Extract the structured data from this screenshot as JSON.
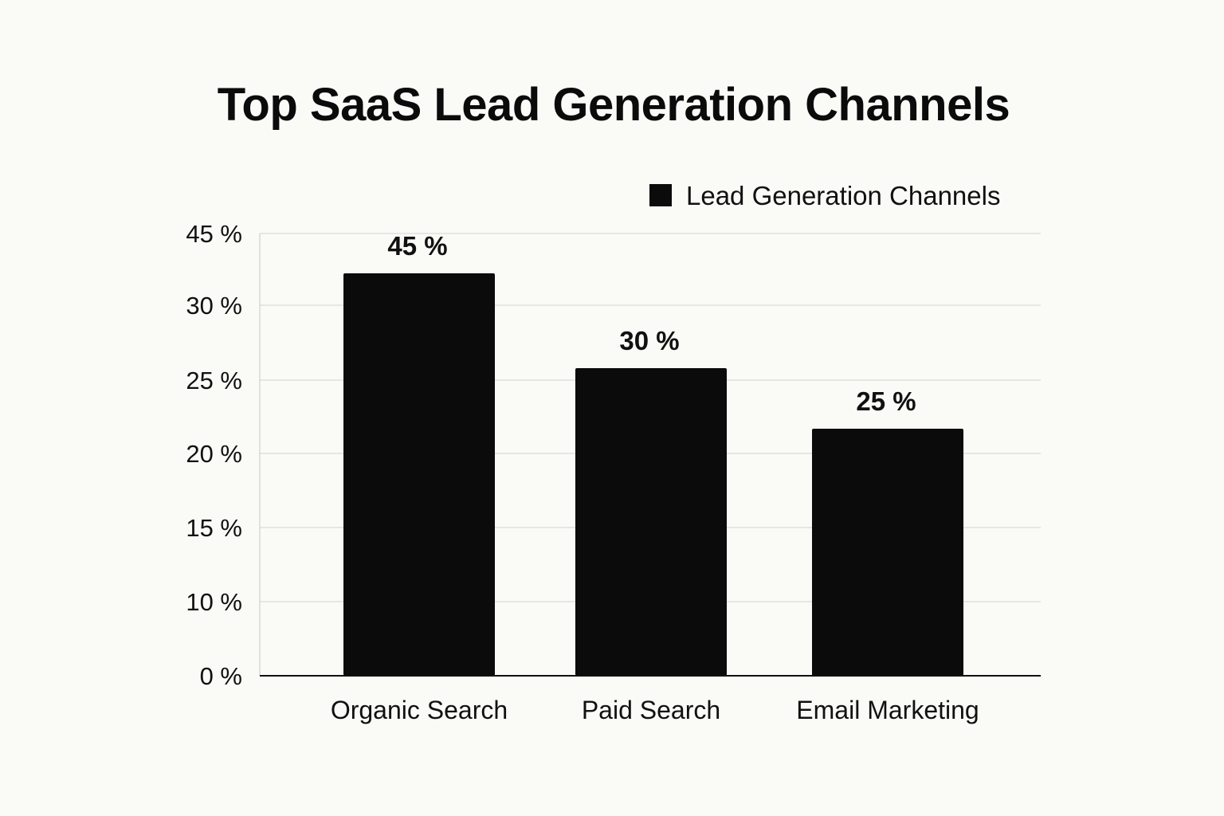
{
  "chart_data": {
    "type": "bar",
    "title": "Top SaaS Lead Generation Channels",
    "xlabel": "",
    "ylabel": "",
    "categories": [
      "Organic Search",
      "Paid Search",
      "Email Marketing"
    ],
    "series": [
      {
        "name": "Lead Generation Channels",
        "values": [
          45,
          30,
          25
        ],
        "data_labels": [
          "45 %",
          "30 %",
          "25 %"
        ],
        "color": "#0b0b0b"
      }
    ],
    "y_ticks": [
      {
        "value": 0,
        "label": "0 %"
      },
      {
        "value": 10,
        "label": "10 %"
      },
      {
        "value": 15,
        "label": "15 %"
      },
      {
        "value": 20,
        "label": "20 %"
      },
      {
        "value": 25,
        "label": "25 %"
      },
      {
        "value": 30,
        "label": "30 %"
      },
      {
        "value": 45,
        "label": "45 %"
      }
    ],
    "ylim": [
      0,
      45
    ],
    "grid": true,
    "legend_position": "top-right"
  }
}
